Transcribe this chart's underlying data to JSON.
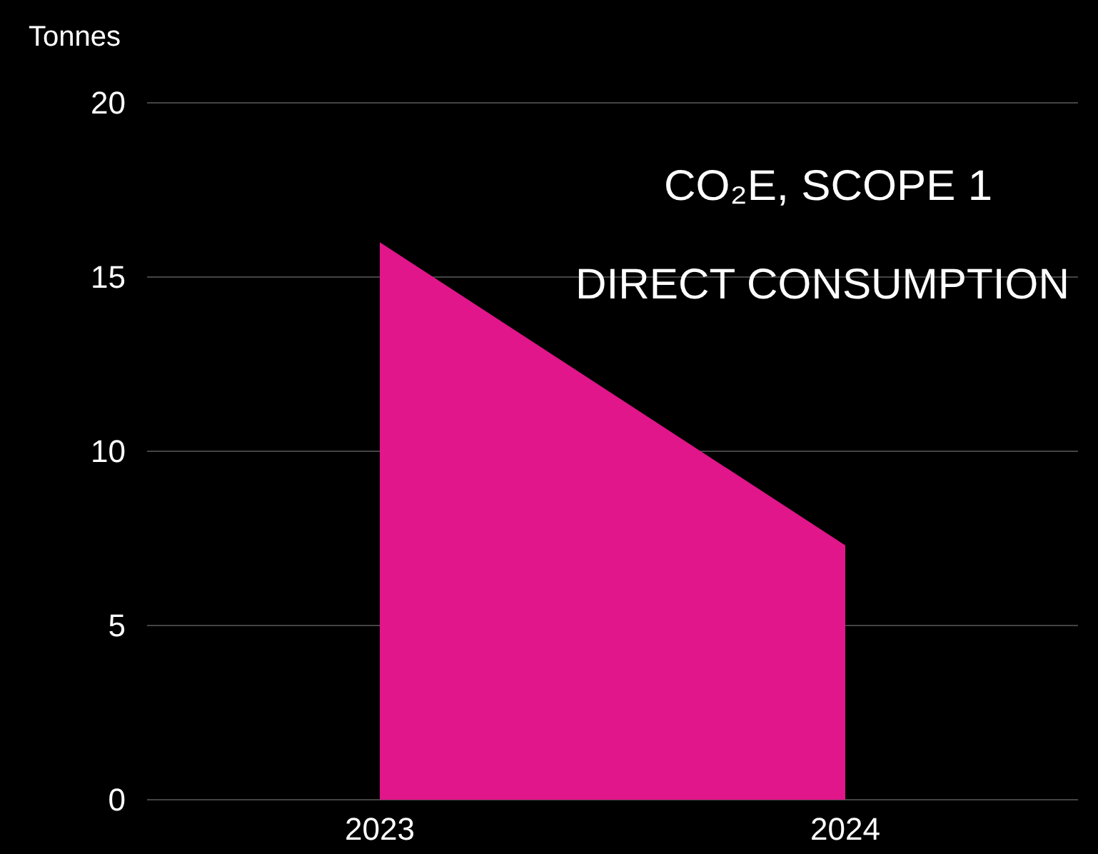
{
  "chart_data": {
    "type": "area",
    "title": "CO₂E, SCOPE 1",
    "subtitle": "DIRECT CONSUMPTION",
    "ylabel": "Tonnes",
    "categories": [
      "2023",
      "2024"
    ],
    "series": [
      {
        "color": "#e0168a",
        "values": [
          16,
          7.3
        ]
      }
    ],
    "ylim": [
      0,
      20
    ],
    "yticks": [
      0,
      5,
      10,
      15,
      20
    ],
    "grid": "y"
  }
}
